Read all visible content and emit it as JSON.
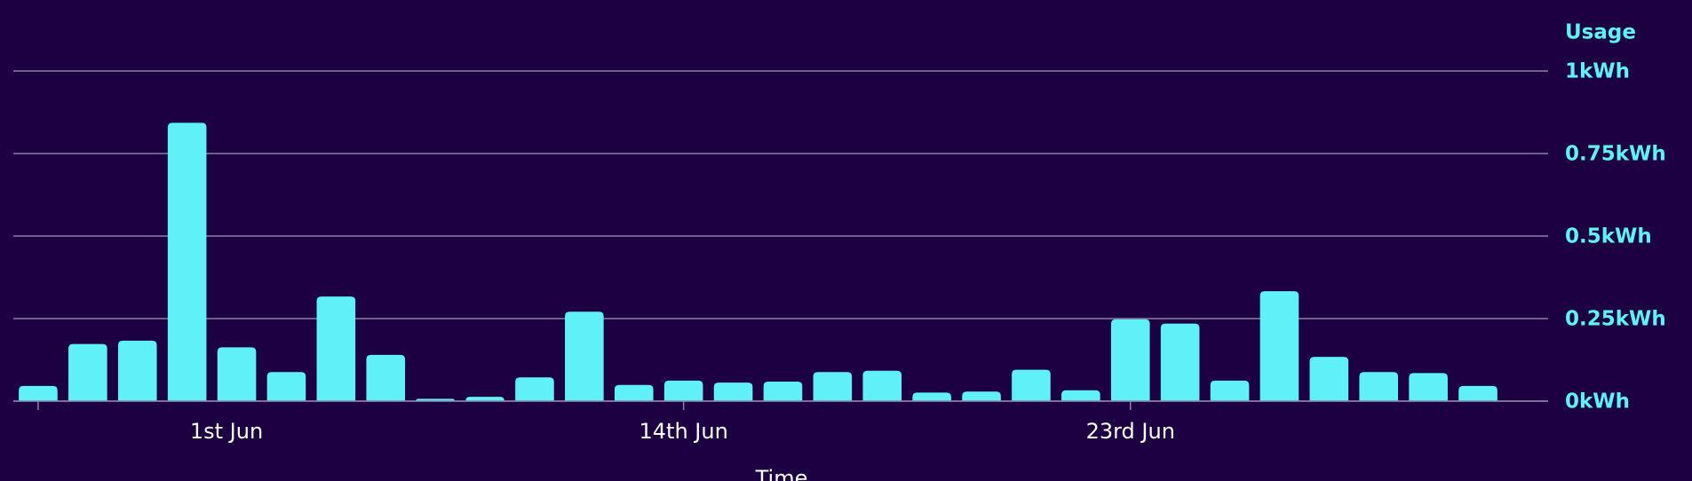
{
  "chart_data": {
    "type": "bar",
    "title": "Usage",
    "x_label": "Time",
    "categories": [
      "1st Jun",
      null,
      null,
      null,
      null,
      null,
      null,
      null,
      null,
      null,
      null,
      null,
      null,
      "14th Jun",
      null,
      null,
      null,
      null,
      null,
      null,
      null,
      null,
      "23rd Jun",
      null,
      null,
      null,
      null,
      null,
      null,
      null
    ],
    "values": [
      0.046,
      0.173,
      0.183,
      0.843,
      0.163,
      0.088,
      0.317,
      0.14,
      0.007,
      0.013,
      0.072,
      0.271,
      0.049,
      0.062,
      0.056,
      0.059,
      0.088,
      0.092,
      0.026,
      0.029,
      0.095,
      0.033,
      0.248,
      0.235,
      0.062,
      0.333,
      0.134,
      0.088,
      0.085,
      0.046
    ],
    "color": "#5ff1f7",
    "ylim": [
      0,
      1
    ],
    "yticks": [
      {
        "value": 0,
        "label": "0kWh"
      },
      {
        "value": 0.25,
        "label": "0.25kWh"
      },
      {
        "value": 0.5,
        "label": "0.5kWh"
      },
      {
        "value": 0.75,
        "label": "0.75kWh"
      },
      {
        "value": 1,
        "label": "1kWh"
      }
    ],
    "grid": true
  }
}
